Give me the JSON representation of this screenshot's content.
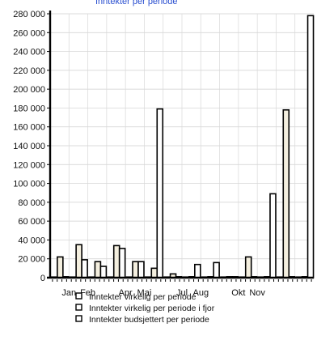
{
  "chart_data": {
    "type": "bar",
    "title": "",
    "xlabel": "",
    "ylabel": "",
    "ylim": [
      0,
      280000
    ],
    "y_ticks": [
      0,
      20000,
      40000,
      60000,
      80000,
      100000,
      120000,
      140000,
      160000,
      180000,
      200000,
      220000,
      240000,
      260000,
      280000
    ],
    "y_tick_labels": [
      "0",
      "20 000",
      "40 000",
      "60 000",
      "80 000",
      "100 000",
      "120 000",
      "140 000",
      "160 000",
      "180 000",
      "200 000",
      "220 000",
      "240 000",
      "260 000",
      "280 000"
    ],
    "categories": [
      "1",
      "2",
      "3",
      "4",
      "5",
      "6",
      "7",
      "8",
      "9",
      "10",
      "11",
      "12",
      "13",
      "14"
    ],
    "month_labels": [
      {
        "label": "Jan",
        "after": 1
      },
      {
        "label": "Feb",
        "after": 2
      },
      {
        "label": "Apr",
        "after": 4
      },
      {
        "label": "Mai",
        "after": 5
      },
      {
        "label": "Jul",
        "after": 7
      },
      {
        "label": "Aug",
        "after": 8
      },
      {
        "label": "Okt",
        "after": 10
      },
      {
        "label": "Nov",
        "after": 11
      }
    ],
    "grid": true,
    "legend_position": "bottom",
    "series": [
      {
        "name": "Inntekter virkelig per periode",
        "color": "#f4efdf",
        "values": [
          0,
          0,
          0,
          0,
          0,
          0,
          0,
          0,
          0,
          0,
          0,
          0,
          0,
          0
        ]
      },
      {
        "name": "Inntekter virkelig per periode i fjor",
        "color": "#f4efdf",
        "values": [
          22000,
          35000,
          17000,
          34000,
          17000,
          10000,
          4000,
          1000,
          1000,
          1000,
          22000,
          1000,
          178000,
          1000
        ]
      },
      {
        "name": "Inntekter budsjettert per periode",
        "color": "#ffffff",
        "values": [
          1000,
          19000,
          12000,
          31000,
          17000,
          179000,
          1000,
          14000,
          16000,
          1000,
          1000,
          89000,
          1000,
          278000
        ]
      }
    ]
  },
  "title_fragment": "Inntekter per periode"
}
